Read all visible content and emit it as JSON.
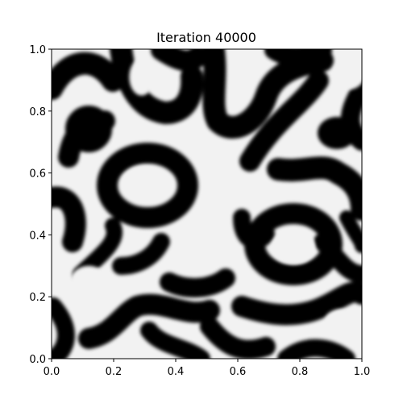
{
  "chart_data": {
    "type": "heatmap",
    "title": "Iteration 40000",
    "xlabel": "",
    "ylabel": "",
    "xlim": [
      0.0,
      1.0
    ],
    "ylim": [
      0.0,
      1.0
    ],
    "x_ticks": [
      "0.0",
      "0.2",
      "0.4",
      "0.6",
      "0.8",
      "1.0"
    ],
    "y_ticks": [
      "0.0",
      "0.2",
      "0.4",
      "0.6",
      "0.8",
      "1.0"
    ],
    "grid": false,
    "colormap": "gray",
    "colors": {
      "low": "#000000",
      "high": "#f2f2f2"
    },
    "pattern": "labyrinthine black and white stripes (phase-field / Turing pattern)",
    "features": [
      {
        "kind": "blob",
        "cx": 0.3,
        "cy": 0.57,
        "rx": 0.07,
        "ry": 0.05
      },
      {
        "kind": "blob",
        "cx": 0.78,
        "cy": 0.36,
        "rx": 0.07,
        "ry": 0.055
      },
      {
        "kind": "blob",
        "cx": 0.12,
        "cy": 0.25,
        "rx": 0.06,
        "ry": 0.05
      },
      {
        "kind": "blob",
        "cx": 0.96,
        "cy": 0.92,
        "rx": 0.05,
        "ry": 0.05
      },
      {
        "kind": "blob",
        "cx": 0.29,
        "cy": 0.91,
        "rx": 0.04,
        "ry": 0.06
      },
      {
        "kind": "blob",
        "cx": 0.93,
        "cy": 0.12,
        "rx": 0.05,
        "ry": 0.04
      },
      {
        "kind": "ring",
        "cx": 0.31,
        "cy": 0.58,
        "rx": 0.17,
        "ry": 0.14
      },
      {
        "kind": "ring",
        "cx": 0.78,
        "cy": 0.37,
        "rx": 0.17,
        "ry": 0.14
      }
    ]
  }
}
